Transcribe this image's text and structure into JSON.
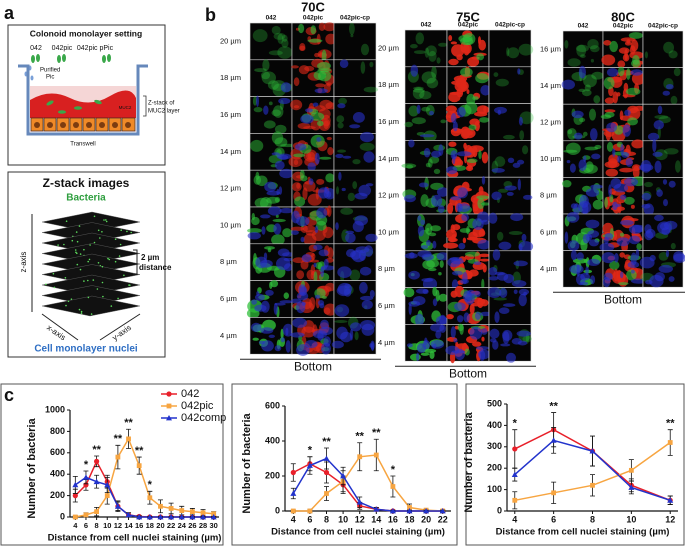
{
  "panel_a": {
    "letter": "a",
    "title": "Colonoid monolayer setting",
    "strains": [
      "042",
      "042pic",
      "042pic pPic"
    ],
    "purified_label": "Purified",
    "pic_label": "Pic",
    "zstack_label": [
      "Z-stack of",
      "MUC2 layer"
    ],
    "muc2_label": "MUC2",
    "transwell_label": "Transwell",
    "zstack_title": "Z-stack images",
    "bacteria_label": "Bacteria",
    "z_axis": "z-axis",
    "x_axis": "x-axis",
    "y_axis": "y-axis",
    "distance_label": [
      "2 µm",
      "distance"
    ],
    "nuclei_label": "Cell monolayer nuclei"
  },
  "panel_b": {
    "letter": "b",
    "groups": [
      {
        "title": "70C",
        "columns": [
          "042",
          "042pic",
          "042pic-cp"
        ],
        "rows": [
          "20 µm",
          "18 µm",
          "16 µm",
          "14 µm",
          "12 µm",
          "10 µm",
          "8 µm",
          "6 µm",
          "4 µm"
        ],
        "footer": "Bottom"
      },
      {
        "title": "75C",
        "columns": [
          "042",
          "042pic",
          "042pic-cp"
        ],
        "rows": [
          "20 µm",
          "18 µm",
          "16 µm",
          "14 µm",
          "12 µm",
          "10 µm",
          "8 µm",
          "6 µm",
          "4 µm"
        ],
        "footer": "Bottom"
      },
      {
        "title": "80C",
        "columns": [
          "042",
          "042pic",
          "042pic-cp"
        ],
        "rows": [
          "16 µm",
          "14 µm",
          "12 µm",
          "10 µm",
          "8 µm",
          "6 µm",
          "4 µm"
        ],
        "footer": "Bottom"
      }
    ]
  },
  "panel_c": {
    "letter": "c"
  },
  "chart_data": [
    {
      "type": "line",
      "ylabel": "Number of bacteria",
      "xlabel": "Distance from cell nuclei staining (µm)",
      "x": [
        4,
        6,
        8,
        10,
        12,
        14,
        16,
        18,
        20,
        22,
        24,
        26,
        28,
        30
      ],
      "xlim": [
        3,
        31
      ],
      "xticks": [
        4,
        6,
        8,
        10,
        12,
        14,
        16,
        18,
        20,
        22,
        24,
        26,
        28,
        30
      ],
      "ylim": [
        0,
        1000
      ],
      "yticks": [
        0,
        200,
        400,
        600,
        800,
        1000
      ],
      "legend": "top-right",
      "series": [
        {
          "name": "042",
          "color": "#e8202a",
          "marker": "circle",
          "values": [
            200,
            300,
            520,
            330,
            100,
            20,
            5,
            0,
            0,
            0,
            0,
            0,
            0,
            0
          ],
          "errors": [
            60,
            50,
            50,
            60,
            40,
            20,
            10,
            5,
            5,
            5,
            5,
            5,
            5,
            5
          ]
        },
        {
          "name": "042pic",
          "color": "#f7a541",
          "marker": "square",
          "values": [
            0,
            20,
            50,
            200,
            560,
            730,
            480,
            180,
            100,
            80,
            60,
            50,
            40,
            30
          ],
          "errors": [
            10,
            20,
            40,
            80,
            110,
            90,
            80,
            60,
            60,
            50,
            40,
            30,
            30,
            20
          ]
        },
        {
          "name": "042comp",
          "color": "#2233cc",
          "marker": "triangle",
          "values": [
            300,
            370,
            330,
            300,
            100,
            20,
            0,
            0,
            0,
            0,
            0,
            0,
            0,
            0
          ],
          "errors": [
            80,
            60,
            60,
            70,
            50,
            20,
            10,
            5,
            5,
            5,
            5,
            5,
            5,
            5
          ]
        }
      ],
      "annotations": [
        {
          "x": 6,
          "text": "*"
        },
        {
          "x": 8,
          "text": "**"
        },
        {
          "x": 12,
          "text": "**"
        },
        {
          "x": 14,
          "text": "**"
        },
        {
          "x": 16,
          "text": "**"
        },
        {
          "x": 18,
          "text": "*"
        }
      ]
    },
    {
      "type": "line",
      "ylabel": "Number of bacteria",
      "xlabel": "Distance from cell nuclei staining (µm)",
      "x": [
        4,
        6,
        8,
        10,
        12,
        14,
        16,
        18,
        20,
        22
      ],
      "xlim": [
        3,
        23
      ],
      "xticks": [
        4,
        6,
        8,
        10,
        12,
        14,
        16,
        18,
        20,
        22
      ],
      "ylim": [
        0,
        600
      ],
      "yticks": [
        0,
        200,
        400,
        600
      ],
      "series": [
        {
          "color": "#e8202a",
          "marker": "circle",
          "values": [
            220,
            270,
            220,
            150,
            30,
            10,
            0,
            0,
            0,
            0
          ],
          "errors": [
            50,
            40,
            60,
            50,
            20,
            10,
            5,
            5,
            5,
            5
          ]
        },
        {
          "color": "#f7a541",
          "marker": "square",
          "values": [
            0,
            0,
            100,
            170,
            310,
            320,
            140,
            20,
            5,
            0
          ],
          "errors": [
            5,
            10,
            40,
            60,
            80,
            90,
            60,
            20,
            5,
            5
          ]
        },
        {
          "color": "#2233cc",
          "marker": "triangle",
          "values": [
            100,
            260,
            300,
            200,
            50,
            10,
            0,
            0,
            0,
            0
          ],
          "errors": [
            30,
            50,
            60,
            50,
            30,
            10,
            5,
            5,
            5,
            5
          ]
        }
      ],
      "annotations": [
        {
          "x": 6,
          "text": "*"
        },
        {
          "x": 8,
          "text": "**"
        },
        {
          "x": 12,
          "text": "**"
        },
        {
          "x": 14,
          "text": "**"
        },
        {
          "x": 16,
          "text": "*"
        }
      ]
    },
    {
      "type": "line",
      "ylabel": "Number of bacteria",
      "xlabel": "Distance from cell nuclei staining (µm)",
      "x": [
        4,
        6,
        8,
        10,
        12
      ],
      "xlim": [
        3.6,
        12.4
      ],
      "xticks": [
        4,
        6,
        8,
        10,
        12
      ],
      "ylim": [
        0,
        500
      ],
      "yticks": [
        0,
        100,
        200,
        300,
        400,
        500
      ],
      "series": [
        {
          "color": "#e8202a",
          "marker": "circle",
          "values": [
            290,
            380,
            280,
            120,
            50
          ],
          "errors": [
            90,
            80,
            70,
            30,
            20
          ]
        },
        {
          "color": "#f7a541",
          "marker": "square",
          "values": [
            50,
            85,
            120,
            190,
            320
          ],
          "errors": [
            40,
            50,
            50,
            50,
            60
          ]
        },
        {
          "color": "#2233cc",
          "marker": "triangle",
          "values": [
            170,
            330,
            280,
            110,
            50
          ],
          "errors": [
            30,
            60,
            70,
            30,
            20
          ]
        }
      ],
      "annotations": [
        {
          "x": 4,
          "text": "*"
        },
        {
          "x": 6,
          "text": "**"
        },
        {
          "x": 12,
          "text": "**"
        }
      ]
    }
  ]
}
